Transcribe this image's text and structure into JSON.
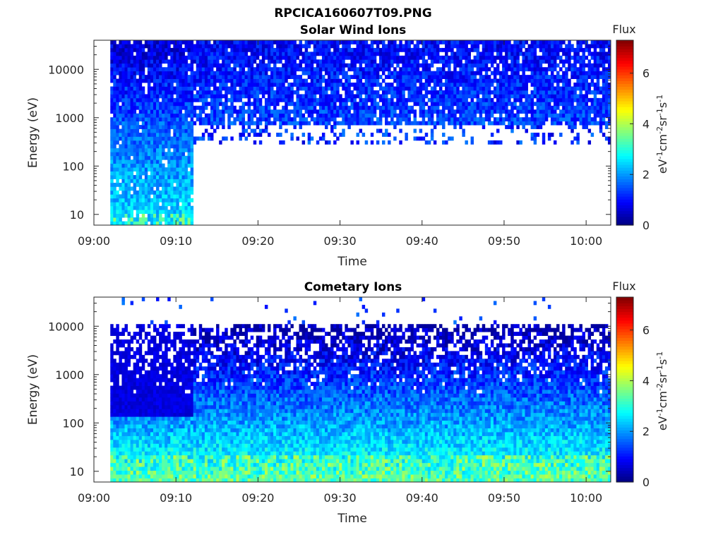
{
  "figure": {
    "suptitle": "RPCICA160607T09.PNG"
  },
  "chart_data": [
    {
      "type": "heatmap",
      "title": "Solar Wind Ions",
      "xlabel": "Time",
      "ylabel": "Energy (eV)",
      "x_ticks": [
        "09:00",
        "09:10",
        "09:20",
        "09:30",
        "09:40",
        "09:50",
        "10:00"
      ],
      "x_range": [
        "09:00",
        "10:03"
      ],
      "y_scale": "log",
      "y_ticks": [
        "10",
        "100",
        "1000",
        "10000"
      ],
      "y_range": [
        6,
        40000
      ],
      "data_start": "09:02",
      "regions": [
        {
          "from": "09:02",
          "to": "09:12",
          "energy_min": 6,
          "energy_max": 40000,
          "note_level": "1-3"
        },
        {
          "from": "09:12",
          "to": "10:03",
          "energy_min": 300,
          "energy_max": 40000,
          "note_level": "1-2"
        }
      ],
      "colorbar": {
        "label": "Flux",
        "unit": "eV^-1cm^-2sr^-1s^-1",
        "ticks": [
          "0",
          "2",
          "4",
          "6"
        ],
        "range": [
          0,
          7.3
        ],
        "colormap": "jet"
      }
    },
    {
      "type": "heatmap",
      "title": "Cometary Ions",
      "xlabel": "Time",
      "ylabel": "Energy (eV)",
      "x_ticks": [
        "09:00",
        "09:10",
        "09:20",
        "09:30",
        "09:40",
        "09:50",
        "10:00"
      ],
      "x_range": [
        "09:00",
        "10:03"
      ],
      "y_scale": "log",
      "y_ticks": [
        "10",
        "100",
        "1000",
        "10000"
      ],
      "y_range": [
        6,
        40000
      ],
      "data_start": "09:02",
      "regions": [
        {
          "from": "09:02",
          "to": "10:03",
          "energy_min": 6,
          "energy_max": 12000,
          "note_level": "0.5-4"
        },
        {
          "from": "09:03",
          "to": "09:58",
          "energy_min": 15000,
          "energy_max": 40000,
          "note_level": "sparse"
        }
      ],
      "colorbar": {
        "label": "Flux",
        "unit": "eV^-1cm^-2sr^-1s^-1",
        "ticks": [
          "0",
          "2",
          "4",
          "6"
        ],
        "range": [
          0,
          7.3
        ],
        "colormap": "jet"
      }
    }
  ]
}
